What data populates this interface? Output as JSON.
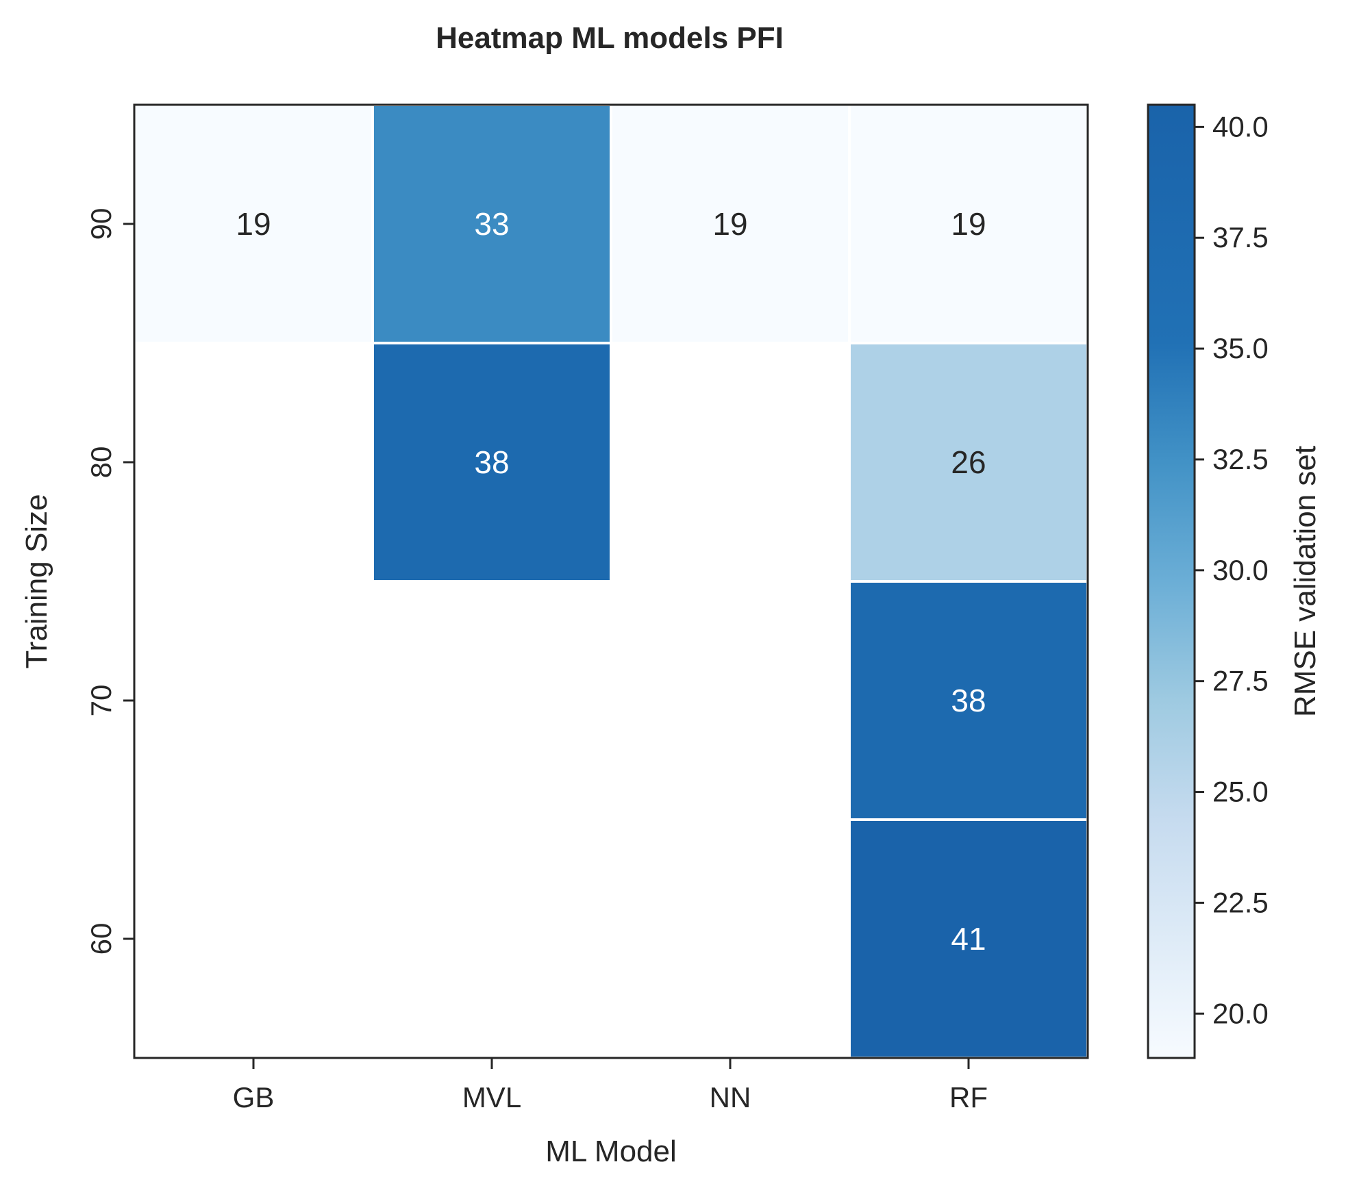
{
  "chart_data": {
    "type": "heatmap",
    "title": "Heatmap ML models PFI",
    "xlabel": "ML Model",
    "ylabel": "Training Size",
    "x_categories": [
      "GB",
      "MVL",
      "NN",
      "RF"
    ],
    "y_categories": [
      "90",
      "80",
      "70",
      "60"
    ],
    "cells": [
      {
        "x": "GB",
        "y": "90",
        "value": 19,
        "label": "19"
      },
      {
        "x": "MVL",
        "y": "90",
        "value": 33,
        "label": "33"
      },
      {
        "x": "NN",
        "y": "90",
        "value": 19,
        "label": "19"
      },
      {
        "x": "RF",
        "y": "90",
        "value": 19,
        "label": "19"
      },
      {
        "x": "MVL",
        "y": "80",
        "value": 38,
        "label": "38"
      },
      {
        "x": "RF",
        "y": "80",
        "value": 26,
        "label": "26"
      },
      {
        "x": "RF",
        "y": "70",
        "value": 38,
        "label": "38"
      },
      {
        "x": "RF",
        "y": "60",
        "value": 41,
        "label": "41"
      }
    ],
    "colorbar": {
      "label": "RMSE validation set",
      "range": [
        19,
        40.5
      ],
      "ticks": [
        "20.0",
        "22.5",
        "25.0",
        "27.5",
        "30.0",
        "32.5",
        "35.0",
        "37.5",
        "40.0"
      ],
      "colormap": "Blues",
      "low_color": "#f7fbff",
      "high_color": "#1a63aa"
    },
    "grid": false
  }
}
